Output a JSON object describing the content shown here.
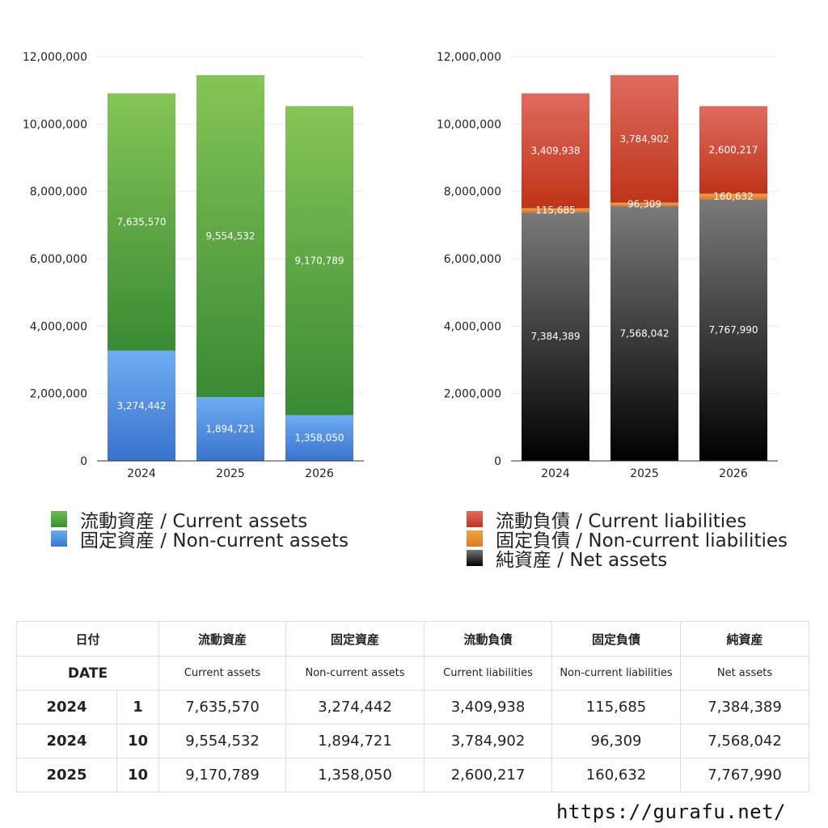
{
  "chart_data": [
    {
      "type": "bar",
      "stacked": true,
      "categories": [
        "2024",
        "2025",
        "2026"
      ],
      "series": [
        {
          "name": "固定資産 / Non-current assets",
          "values": [
            3274442,
            1894721,
            1358050
          ],
          "labels": [
            "3,274,442",
            "1,894,721",
            "1,358,050"
          ],
          "color": "#4a8ce2"
        },
        {
          "name": "流動資産 / Current assets",
          "values": [
            7635570,
            9554532,
            9170789
          ],
          "labels": [
            "7,635,570",
            "9,554,532",
            "9,170,789"
          ],
          "color": "#55a840"
        }
      ],
      "ylim": [
        0,
        12000000
      ],
      "yticks": [
        "0",
        "2,000,000",
        "4,000,000",
        "6,000,000",
        "8,000,000",
        "10,000,000",
        "12,000,000"
      ],
      "grid": true,
      "legend": "bottom"
    },
    {
      "type": "bar",
      "stacked": true,
      "categories": [
        "2024",
        "2025",
        "2026"
      ],
      "series": [
        {
          "name": "純資産 / Net assets",
          "values": [
            7384389,
            7568042,
            7767990
          ],
          "labels": [
            "7,384,389",
            "7,568,042",
            "7,767,990"
          ],
          "color": "#333333"
        },
        {
          "name": "固定負債 / Non-current liabilities",
          "values": [
            115685,
            96309,
            160632
          ],
          "labels": [
            "115,685",
            "96,309",
            "160,632"
          ],
          "color": "#e8892e"
        },
        {
          "name": "流動負債 / Current liabilities",
          "values": [
            3409938,
            3784902,
            2600217
          ],
          "labels": [
            "3,409,938",
            "3,784,902",
            "2,600,217"
          ],
          "color": "#d2493a"
        }
      ],
      "ylim": [
        0,
        12000000
      ],
      "yticks": [
        "0",
        "2,000,000",
        "4,000,000",
        "6,000,000",
        "8,000,000",
        "10,000,000",
        "12,000,000"
      ],
      "grid": true,
      "legend": "bottom"
    }
  ],
  "legend_left": [
    "流動資産 / Current assets",
    "固定資産 / Non-current assets"
  ],
  "legend_right": [
    "流動負債 / Current liabilities",
    "固定負債 / Non-current liabilities",
    "純資産 / Net assets"
  ],
  "table": {
    "header_jp": {
      "date": "日付",
      "cols": [
        "流動資産",
        "固定資産",
        "流動負債",
        "固定負債",
        "純資産"
      ]
    },
    "header_en": {
      "date": "DATE",
      "cols": [
        "Current assets",
        "Non-current assets",
        "Current liabilities",
        "Non-current liabilities",
        "Net assets"
      ]
    },
    "rows": [
      {
        "year": "2024",
        "month": "1",
        "values": [
          "7,635,570",
          "3,274,442",
          "3,409,938",
          "115,685",
          "7,384,389"
        ]
      },
      {
        "year": "2024",
        "month": "10",
        "values": [
          "9,554,532",
          "1,894,721",
          "3,784,902",
          "96,309",
          "7,568,042"
        ]
      },
      {
        "year": "2025",
        "month": "10",
        "values": [
          "9,170,789",
          "1,358,050",
          "2,600,217",
          "160,632",
          "7,767,990"
        ]
      }
    ]
  },
  "source_url": "https://gurafu.net/"
}
